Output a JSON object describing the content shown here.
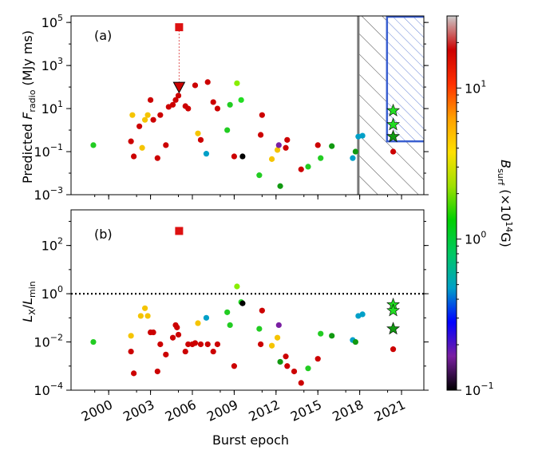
{
  "chart_data": {
    "type": "scatter",
    "xlabel": "Burst epoch",
    "x_ticks": [
      "2000",
      "2003",
      "2006",
      "2009",
      "2012",
      "2015",
      "2018",
      "2021"
    ],
    "xlim": [
      1997.3,
      2022.6
    ],
    "colorbar": {
      "label_main": "B",
      "label_sub": "surf",
      "label_tail": " (×10",
      "label_exp": "14",
      "label_end": "G)",
      "scale": "log",
      "range": [
        0.1,
        30
      ],
      "ticks": [
        {
          "value": 0.1,
          "base": "10",
          "exp": "−1"
        },
        {
          "value": 1,
          "base": "10",
          "exp": "0"
        },
        {
          "value": 10,
          "base": "10",
          "exp": "1"
        }
      ],
      "colors": [
        "#000000",
        "#7a1fa2",
        "#0000ff",
        "#00a0c8",
        "#00c864",
        "#00d000",
        "#9ee000",
        "#ffe000",
        "#ffa000",
        "#ff3000",
        "#cc0000",
        "#cccccc"
      ]
    },
    "panels": [
      {
        "label": "(a)",
        "ylabel_main": "Predicted ",
        "ylabel_italic": "F",
        "ylabel_sub": "radio",
        "ylabel_tail": " (MJy ms)",
        "yscale": "log",
        "ylim": [
          0.001,
          200000
        ],
        "y_ticks": [
          {
            "value": 0.001,
            "base": "10",
            "exp": "−3"
          },
          {
            "value": 0.1,
            "base": "10",
            "exp": "−1"
          },
          {
            "value": 10,
            "base": "10",
            "exp": "1"
          },
          {
            "value": 1000,
            "base": "10",
            "exp": "3"
          },
          {
            "value": 100000,
            "base": "10",
            "exp": "5"
          }
        ],
        "gray_region": [
          2017.9,
          2022.6
        ],
        "blue_region": {
          "x": [
            2019.9,
            2022.6
          ],
          "y_min": 0.3
        },
        "upper_limit_line": {
          "x": 2005.05,
          "y": [
            100,
            60000
          ]
        },
        "square": {
          "x": 2005.05,
          "y": 60000,
          "color": "#dd1111"
        },
        "triangle": {
          "x": 2005.05,
          "y": 100,
          "color": "#cc0000"
        },
        "stars": [
          {
            "x": 2020.4,
            "y": 8,
            "color": "#22dd22"
          },
          {
            "x": 2020.4,
            "y": 1.8,
            "color": "#22dd22"
          },
          {
            "x": 2020.4,
            "y": 0.5,
            "color": "#119911"
          }
        ],
        "points": [
          {
            "x": 1998.9,
            "y": 0.2,
            "color": "#22cc22"
          },
          {
            "x": 2001.6,
            "y": 0.3,
            "color": "#cc0000"
          },
          {
            "x": 2001.7,
            "y": 5,
            "color": "#f5c400"
          },
          {
            "x": 2001.8,
            "y": 0.06,
            "color": "#cc0000"
          },
          {
            "x": 2002.2,
            "y": 1.5,
            "color": "#cc0000"
          },
          {
            "x": 2002.4,
            "y": 0.15,
            "color": "#f5c400"
          },
          {
            "x": 2002.6,
            "y": 3,
            "color": "#f5c400"
          },
          {
            "x": 2002.8,
            "y": 5,
            "color": "#f5c400"
          },
          {
            "x": 2003.0,
            "y": 25,
            "color": "#cc0000"
          },
          {
            "x": 2003.2,
            "y": 3,
            "color": "#cc0000"
          },
          {
            "x": 2003.5,
            "y": 0.05,
            "color": "#cc0000"
          },
          {
            "x": 2003.7,
            "y": 5,
            "color": "#cc0000"
          },
          {
            "x": 2004.1,
            "y": 0.2,
            "color": "#cc0000"
          },
          {
            "x": 2004.3,
            "y": 12,
            "color": "#cc0000"
          },
          {
            "x": 2004.6,
            "y": 15,
            "color": "#cc0000"
          },
          {
            "x": 2004.8,
            "y": 25,
            "color": "#cc0000"
          },
          {
            "x": 2005.0,
            "y": 40,
            "color": "#cc0000"
          },
          {
            "x": 2005.5,
            "y": 13,
            "color": "#cc0000"
          },
          {
            "x": 2005.7,
            "y": 10,
            "color": "#cc0000"
          },
          {
            "x": 2006.2,
            "y": 120,
            "color": "#cc0000"
          },
          {
            "x": 2006.4,
            "y": 0.7,
            "color": "#f5c400"
          },
          {
            "x": 2006.6,
            "y": 0.35,
            "color": "#cc0000"
          },
          {
            "x": 2007.0,
            "y": 0.08,
            "color": "#00a0c8"
          },
          {
            "x": 2007.1,
            "y": 170,
            "color": "#cc0000"
          },
          {
            "x": 2007.5,
            "y": 20,
            "color": "#cc0000"
          },
          {
            "x": 2007.8,
            "y": 10,
            "color": "#cc0000"
          },
          {
            "x": 2008.5,
            "y": 1,
            "color": "#22cc22"
          },
          {
            "x": 2008.7,
            "y": 15,
            "color": "#22cc22"
          },
          {
            "x": 2009.0,
            "y": 0.06,
            "color": "#cc0000"
          },
          {
            "x": 2009.2,
            "y": 150,
            "color": "#88ee00"
          },
          {
            "x": 2009.5,
            "y": 25,
            "color": "#22dd22"
          },
          {
            "x": 2009.6,
            "y": 0.06,
            "color": "#000000"
          },
          {
            "x": 2010.9,
            "y": 0.6,
            "color": "#cc0000"
          },
          {
            "x": 2010.8,
            "y": 0.008,
            "color": "#22cc22"
          },
          {
            "x": 2011.0,
            "y": 5,
            "color": "#cc0000"
          },
          {
            "x": 2011.7,
            "y": 0.045,
            "color": "#f5c400"
          },
          {
            "x": 2012.1,
            "y": 0.12,
            "color": "#f5c400"
          },
          {
            "x": 2012.2,
            "y": 0.2,
            "color": "#7a1fa2"
          },
          {
            "x": 2012.3,
            "y": 0.0025,
            "color": "#119911"
          },
          {
            "x": 2012.7,
            "y": 0.15,
            "color": "#cc0000"
          },
          {
            "x": 2012.8,
            "y": 0.35,
            "color": "#cc0000"
          },
          {
            "x": 2013.8,
            "y": 0.015,
            "color": "#cc0000"
          },
          {
            "x": 2014.3,
            "y": 0.02,
            "color": "#22cc22"
          },
          {
            "x": 2015.0,
            "y": 0.2,
            "color": "#cc0000"
          },
          {
            "x": 2015.2,
            "y": 0.05,
            "color": "#22cc22"
          },
          {
            "x": 2016.0,
            "y": 0.18,
            "color": "#119911"
          },
          {
            "x": 2017.5,
            "y": 0.05,
            "color": "#00a0c8"
          },
          {
            "x": 2017.7,
            "y": 0.1,
            "color": "#119911"
          },
          {
            "x": 2017.9,
            "y": 0.5,
            "color": "#00a0c8"
          },
          {
            "x": 2018.2,
            "y": 0.55,
            "color": "#00a0c8"
          },
          {
            "x": 2020.4,
            "y": 0.1,
            "color": "#cc0000"
          }
        ]
      },
      {
        "label": "(b)",
        "ylabel_italic": "L",
        "ylabel_sub": "X",
        "ylabel_mid": "/",
        "ylabel_italic2": "L",
        "ylabel_sub2": "min",
        "yscale": "log",
        "ylim": [
          0.0001,
          3000
        ],
        "y_ticks": [
          {
            "value": 0.0001,
            "base": "10",
            "exp": "−4"
          },
          {
            "value": 0.01,
            "base": "10",
            "exp": "−2"
          },
          {
            "value": 1,
            "base": "10",
            "exp": "0"
          },
          {
            "value": 100,
            "base": "10",
            "exp": "2"
          }
        ],
        "reference_line": 1,
        "square": {
          "x": 2005.05,
          "y": 400,
          "color": "#dd1111"
        },
        "stars": [
          {
            "x": 2020.4,
            "y": 0.35,
            "color": "#22dd22"
          },
          {
            "x": 2020.4,
            "y": 0.2,
            "color": "#22dd22"
          },
          {
            "x": 2020.4,
            "y": 0.035,
            "color": "#119911"
          }
        ],
        "points": [
          {
            "x": 1998.9,
            "y": 0.01,
            "color": "#22cc22"
          },
          {
            "x": 2001.6,
            "y": 0.004,
            "color": "#cc0000"
          },
          {
            "x": 2001.6,
            "y": 0.018,
            "color": "#f5c400"
          },
          {
            "x": 2001.8,
            "y": 0.0005,
            "color": "#cc0000"
          },
          {
            "x": 2002.3,
            "y": 0.12,
            "color": "#f5c400"
          },
          {
            "x": 2002.6,
            "y": 0.25,
            "color": "#f5c400"
          },
          {
            "x": 2002.8,
            "y": 0.12,
            "color": "#f5c400"
          },
          {
            "x": 2003.0,
            "y": 0.025,
            "color": "#cc0000"
          },
          {
            "x": 2003.2,
            "y": 0.025,
            "color": "#cc0000"
          },
          {
            "x": 2003.5,
            "y": 0.0006,
            "color": "#cc0000"
          },
          {
            "x": 2003.7,
            "y": 0.008,
            "color": "#cc0000"
          },
          {
            "x": 2004.1,
            "y": 0.003,
            "color": "#cc0000"
          },
          {
            "x": 2004.6,
            "y": 0.015,
            "color": "#cc0000"
          },
          {
            "x": 2004.8,
            "y": 0.05,
            "color": "#cc0000"
          },
          {
            "x": 2004.9,
            "y": 0.04,
            "color": "#cc0000"
          },
          {
            "x": 2005.0,
            "y": 0.02,
            "color": "#cc0000"
          },
          {
            "x": 2005.5,
            "y": 0.004,
            "color": "#cc0000"
          },
          {
            "x": 2005.7,
            "y": 0.008,
            "color": "#cc0000"
          },
          {
            "x": 2006.0,
            "y": 0.008,
            "color": "#cc0000"
          },
          {
            "x": 2006.2,
            "y": 0.009,
            "color": "#cc0000"
          },
          {
            "x": 2006.4,
            "y": 0.06,
            "color": "#f5c400"
          },
          {
            "x": 2006.6,
            "y": 0.008,
            "color": "#cc0000"
          },
          {
            "x": 2007.0,
            "y": 0.1,
            "color": "#00a0c8"
          },
          {
            "x": 2007.1,
            "y": 0.008,
            "color": "#cc0000"
          },
          {
            "x": 2007.5,
            "y": 0.004,
            "color": "#cc0000"
          },
          {
            "x": 2007.8,
            "y": 0.008,
            "color": "#cc0000"
          },
          {
            "x": 2008.5,
            "y": 0.17,
            "color": "#22cc22"
          },
          {
            "x": 2008.7,
            "y": 0.05,
            "color": "#22cc22"
          },
          {
            "x": 2009.0,
            "y": 0.001,
            "color": "#cc0000"
          },
          {
            "x": 2009.2,
            "y": 2,
            "color": "#88ee00"
          },
          {
            "x": 2009.5,
            "y": 0.45,
            "color": "#22dd22"
          },
          {
            "x": 2009.6,
            "y": 0.4,
            "color": "#000000"
          },
          {
            "x": 2010.8,
            "y": 0.035,
            "color": "#22cc22"
          },
          {
            "x": 2010.9,
            "y": 0.008,
            "color": "#cc0000"
          },
          {
            "x": 2011.0,
            "y": 0.2,
            "color": "#cc0000"
          },
          {
            "x": 2011.7,
            "y": 0.007,
            "color": "#f5c400"
          },
          {
            "x": 2012.1,
            "y": 0.015,
            "color": "#f5c400"
          },
          {
            "x": 2012.2,
            "y": 0.05,
            "color": "#7a1fa2"
          },
          {
            "x": 2012.3,
            "y": 0.0015,
            "color": "#119911"
          },
          {
            "x": 2012.7,
            "y": 0.0025,
            "color": "#cc0000"
          },
          {
            "x": 2012.8,
            "y": 0.001,
            "color": "#cc0000"
          },
          {
            "x": 2013.3,
            "y": 0.0006,
            "color": "#cc0000"
          },
          {
            "x": 2013.8,
            "y": 0.0002,
            "color": "#cc0000"
          },
          {
            "x": 2014.3,
            "y": 0.0008,
            "color": "#22cc22"
          },
          {
            "x": 2015.0,
            "y": 0.002,
            "color": "#cc0000"
          },
          {
            "x": 2015.2,
            "y": 0.022,
            "color": "#22cc22"
          },
          {
            "x": 2016.0,
            "y": 0.018,
            "color": "#119911"
          },
          {
            "x": 2017.5,
            "y": 0.012,
            "color": "#00a0c8"
          },
          {
            "x": 2017.7,
            "y": 0.01,
            "color": "#119911"
          },
          {
            "x": 2017.9,
            "y": 0.12,
            "color": "#00a0c8"
          },
          {
            "x": 2018.2,
            "y": 0.14,
            "color": "#00a0c8"
          },
          {
            "x": 2020.4,
            "y": 0.005,
            "color": "#cc0000"
          }
        ]
      }
    ]
  }
}
